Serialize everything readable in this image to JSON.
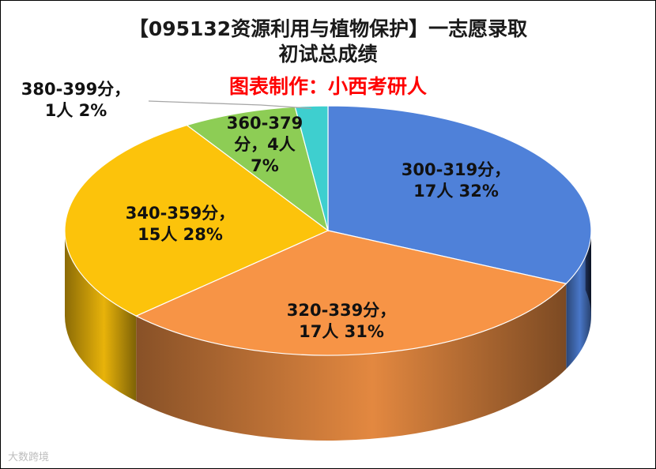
{
  "chart_data": {
    "type": "pie",
    "title_line1": "【095132资源利用与植物保护】一志愿录取",
    "title_line2": "初试总成绩",
    "credit": "图表制作：小西考研人",
    "slices": [
      {
        "category": "300-319分",
        "count_label": "17人",
        "percent": 32,
        "color": "#4f81d9"
      },
      {
        "category": "320-339分",
        "count_label": "17人",
        "percent": 31,
        "color": "#f79446"
      },
      {
        "category": "340-359分",
        "count_label": "15人",
        "percent": 28,
        "color": "#fcc30b"
      },
      {
        "category": "360-379分",
        "count_label": "4人",
        "percent": 7,
        "color": "#8dcd55"
      },
      {
        "category": "380-399分",
        "count_label": "1人",
        "percent": 2,
        "color": "#3ecfcf"
      }
    ]
  },
  "watermark": "大数跨境"
}
